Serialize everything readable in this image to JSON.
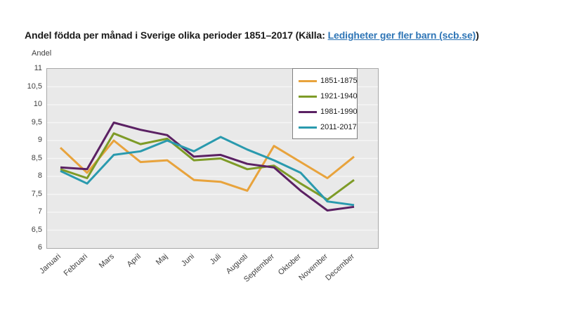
{
  "page": {
    "title_prefix": "Andel födda per månad i Sverige olika perioder 1851–2017 (Källa: ",
    "title_link": "Ledigheter ger fler barn (scb.se)",
    "title_suffix": ")"
  },
  "colors": {
    "link": "#2E75B6",
    "plot_background": "#E9E9E9",
    "grid_line": "#F6F6F6",
    "plot_border": "#A8A8A8"
  },
  "chart_data": {
    "type": "line",
    "title": "Andel födda per månad i Sverige olika perioder 1851–2017",
    "y_axis_title": "Andel",
    "xlabel": "",
    "ylabel": "Andel",
    "ylim": [
      6,
      11
    ],
    "y_tick_step": 0.5,
    "y_tick_labels": [
      "11",
      "10,5",
      "10",
      "9,5",
      "9",
      "8,5",
      "8",
      "7,5",
      "7",
      "6,5",
      "6"
    ],
    "grid": "horizontal",
    "legend_position": "top-right",
    "categories": [
      "Januari",
      "Februari",
      "Mars",
      "April",
      "Maj",
      "Juni",
      "Juli",
      "Augusti",
      "September",
      "Oktober",
      "November",
      "December"
    ],
    "series": [
      {
        "name": "1851-1875",
        "color": "#E8A33C",
        "values": [
          8.8,
          8.1,
          9.0,
          8.4,
          8.45,
          7.9,
          7.85,
          7.6,
          8.85,
          8.4,
          7.95,
          8.55
        ]
      },
      {
        "name": "1921-1940",
        "color": "#7E9B27",
        "values": [
          8.2,
          7.95,
          9.2,
          8.9,
          9.05,
          8.45,
          8.5,
          8.2,
          8.3,
          7.8,
          7.35,
          7.9
        ]
      },
      {
        "name": "1981-1990",
        "color": "#5B2163",
        "values": [
          8.25,
          8.2,
          9.5,
          9.3,
          9.15,
          8.55,
          8.6,
          8.35,
          8.25,
          7.6,
          7.05,
          7.15
        ]
      },
      {
        "name": "2011-2017",
        "color": "#2A9AAE",
        "values": [
          8.15,
          7.8,
          8.6,
          8.7,
          9.0,
          8.7,
          9.1,
          8.75,
          8.45,
          8.1,
          7.3,
          7.2
        ]
      }
    ]
  }
}
